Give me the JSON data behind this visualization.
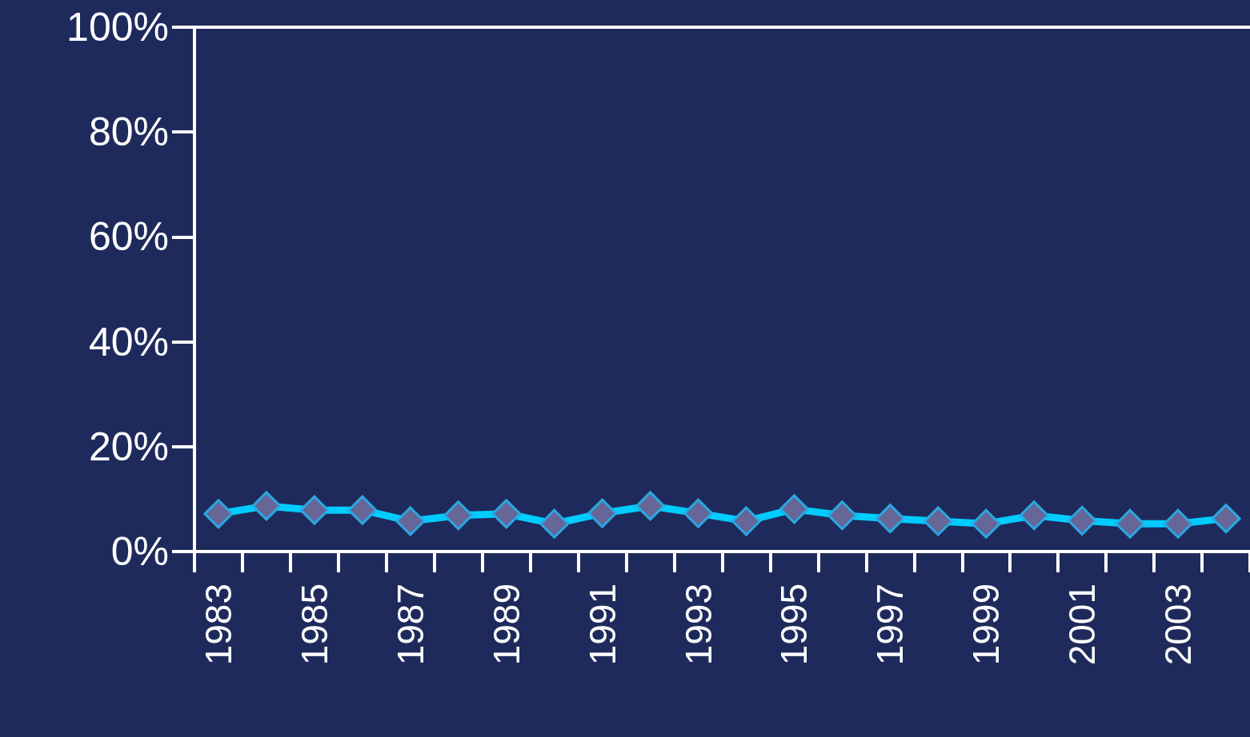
{
  "chart_data": {
    "type": "line",
    "categories": [
      "1983",
      null,
      "1985",
      null,
      "1987",
      null,
      "1989",
      null,
      "1991",
      null,
      "1993",
      null,
      "1995",
      null,
      "1997",
      null,
      "1999",
      null,
      "2001",
      null,
      "2003",
      null
    ],
    "series": [
      {
        "color": "#00ccff",
        "values": [
          7.2,
          8.7,
          7.9,
          7.9,
          5.8,
          6.9,
          7.2,
          5.3,
          7.3,
          8.7,
          7.3,
          5.8,
          8.1,
          6.9,
          6.3,
          5.8,
          5.3,
          6.9,
          5.9,
          5.3,
          5.3,
          6.3
        ]
      }
    ],
    "ylim": [
      0,
      100
    ],
    "yticks": [
      {
        "value": 0,
        "label": "0%"
      },
      {
        "value": 20,
        "label": "20%"
      },
      {
        "value": 40,
        "label": "40%"
      },
      {
        "value": 60,
        "label": "60%"
      },
      {
        "value": 80,
        "label": "80%"
      },
      {
        "value": 100,
        "label": "100%"
      }
    ],
    "marker": "diamond",
    "line_style": "solid",
    "grid": false
  }
}
